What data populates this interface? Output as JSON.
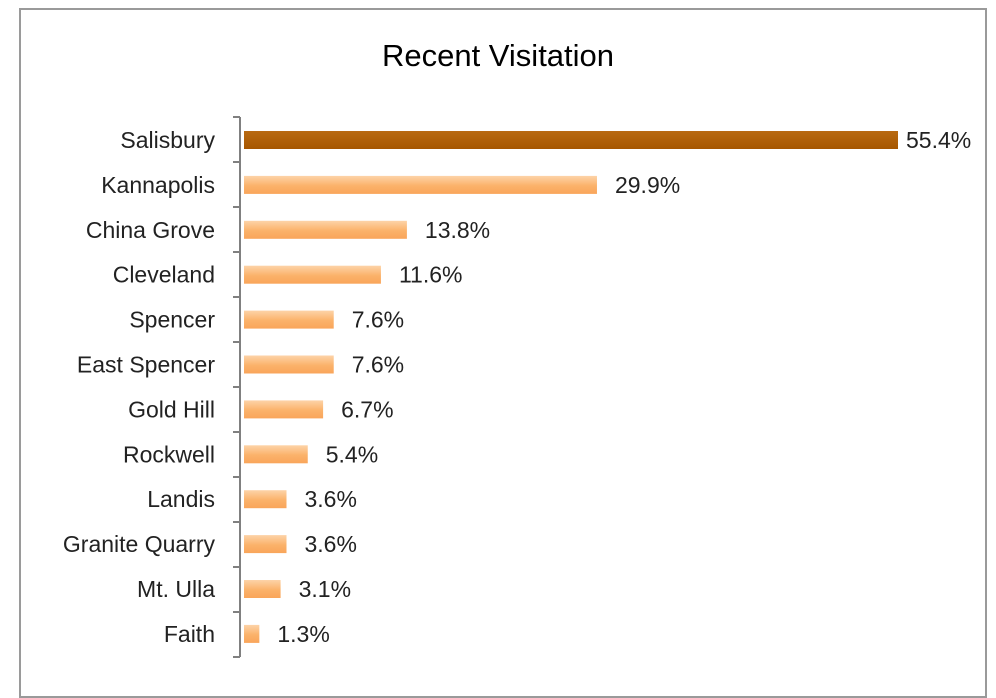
{
  "chart_data": {
    "type": "bar",
    "orientation": "horizontal",
    "title": "Recent Visitation",
    "categories": [
      "Salisbury",
      "Kannapolis",
      "China Grove",
      "Cleveland",
      "Spencer",
      "East Spencer",
      "Gold Hill",
      "Rockwell",
      "Landis",
      "Granite Quarry",
      "Mt. Ulla",
      "Faith"
    ],
    "values": [
      55.4,
      29.9,
      13.8,
      11.6,
      7.6,
      7.6,
      6.7,
      5.4,
      3.6,
      3.6,
      3.1,
      1.3
    ],
    "value_labels": [
      "55.4%",
      "29.9%",
      "13.8%",
      "11.6%",
      "7.6%",
      "7.6%",
      "6.7%",
      "5.4%",
      "3.6%",
      "3.6%",
      "3.1%",
      "1.3%"
    ],
    "xlim": [
      0,
      55.4
    ],
    "grid": false,
    "legend": "none",
    "colors": {
      "highlight": "#b05e00",
      "bar": "#fbb26a",
      "bar_light": "#fdd3a8",
      "axis": "#808080"
    }
  }
}
